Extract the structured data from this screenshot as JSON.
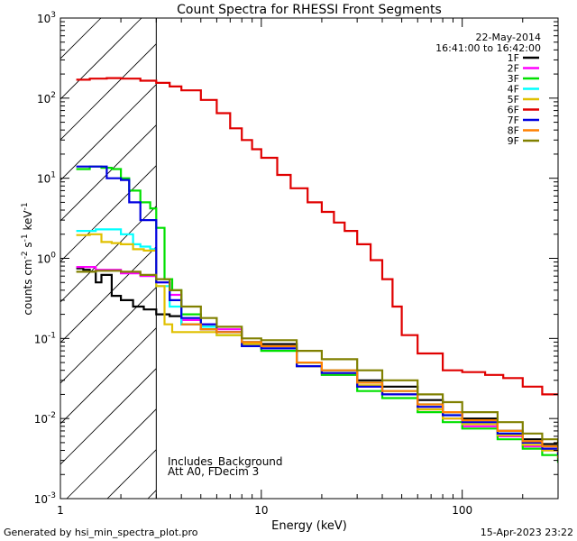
{
  "chart_data": {
    "type": "line",
    "title": "Count Spectra for RHESSI Front Segments",
    "xlabel": "Energy (keV)",
    "ylabel": "counts cm-2 s-1 keV-1",
    "xscale": "log",
    "yscale": "log",
    "xlim": [
      1,
      300
    ],
    "ylim": [
      0.001,
      1000
    ],
    "x_ticks": [
      {
        "value": 1,
        "label": "1"
      },
      {
        "value": 10,
        "label": "10"
      },
      {
        "value": 100,
        "label": "100"
      }
    ],
    "y_ticks": [
      {
        "value": 0.001,
        "base": "10",
        "exp": "-3"
      },
      {
        "value": 0.01,
        "base": "10",
        "exp": "-2"
      },
      {
        "value": 0.1,
        "base": "10",
        "exp": "-1"
      },
      {
        "value": 1,
        "base": "10",
        "exp": "0"
      },
      {
        "value": 10,
        "base": "10",
        "exp": "1"
      },
      {
        "value": 100,
        "base": "10",
        "exp": "2"
      },
      {
        "value": 1000,
        "base": "10",
        "exp": "3"
      }
    ],
    "hatched_region": {
      "from": 1,
      "to": 3
    },
    "date": "22-May-2014",
    "time_range": "16:41:00 to 16:42:00",
    "annotations": [
      "Includes_Background",
      "Att A0, FDecim 3"
    ],
    "series": [
      {
        "name": "1F",
        "color": "#000000",
        "points": [
          [
            1.2,
            0.75
          ],
          [
            1.3,
            0.72
          ],
          [
            1.4,
            0.68
          ],
          [
            1.5,
            0.5
          ],
          [
            1.6,
            0.62
          ],
          [
            1.8,
            0.34
          ],
          [
            2.0,
            0.3
          ],
          [
            2.3,
            0.25
          ],
          [
            2.6,
            0.23
          ],
          [
            3.0,
            0.2
          ],
          [
            3.5,
            0.19
          ],
          [
            4,
            0.15
          ],
          [
            5,
            0.13
          ],
          [
            6,
            0.12
          ],
          [
            8,
            0.09
          ],
          [
            10,
            0.085
          ],
          [
            15,
            0.05
          ],
          [
            20,
            0.04
          ],
          [
            30,
            0.03
          ],
          [
            40,
            0.025
          ],
          [
            60,
            0.017
          ],
          [
            80,
            0.012
          ],
          [
            100,
            0.01
          ],
          [
            150,
            0.007
          ],
          [
            200,
            0.0055
          ],
          [
            250,
            0.0048
          ],
          [
            300,
            0.004
          ]
        ]
      },
      {
        "name": "2F",
        "color": "#ff00ff",
        "points": [
          [
            1.2,
            0.78
          ],
          [
            1.5,
            0.72
          ],
          [
            2.0,
            0.65
          ],
          [
            2.5,
            0.6
          ],
          [
            3.0,
            0.5
          ],
          [
            3.5,
            0.35
          ],
          [
            4,
            0.17
          ],
          [
            5,
            0.15
          ],
          [
            6,
            0.13
          ],
          [
            8,
            0.09
          ],
          [
            10,
            0.08
          ],
          [
            15,
            0.045
          ],
          [
            20,
            0.035
          ],
          [
            30,
            0.025
          ],
          [
            40,
            0.02
          ],
          [
            60,
            0.013
          ],
          [
            80,
            0.01
          ],
          [
            100,
            0.008
          ],
          [
            150,
            0.006
          ],
          [
            200,
            0.0045
          ],
          [
            250,
            0.004
          ],
          [
            300,
            0.003
          ]
        ]
      },
      {
        "name": "3F",
        "color": "#00e000",
        "points": [
          [
            1.2,
            13
          ],
          [
            1.4,
            14
          ],
          [
            1.6,
            13.5
          ],
          [
            1.8,
            13
          ],
          [
            2.0,
            10
          ],
          [
            2.2,
            7
          ],
          [
            2.5,
            5
          ],
          [
            2.8,
            4.2
          ],
          [
            3.0,
            2.4
          ],
          [
            3.3,
            0.55
          ],
          [
            3.6,
            0.4
          ],
          [
            4,
            0.2
          ],
          [
            5,
            0.14
          ],
          [
            6,
            0.11
          ],
          [
            8,
            0.08
          ],
          [
            10,
            0.07
          ],
          [
            15,
            0.045
          ],
          [
            20,
            0.035
          ],
          [
            30,
            0.022
          ],
          [
            40,
            0.018
          ],
          [
            60,
            0.012
          ],
          [
            80,
            0.009
          ],
          [
            100,
            0.0075
          ],
          [
            150,
            0.0055
          ],
          [
            200,
            0.0042
          ],
          [
            250,
            0.0035
          ],
          [
            300,
            0.0028
          ]
        ]
      },
      {
        "name": "4F",
        "color": "#00ffff",
        "points": [
          [
            1.2,
            2.2
          ],
          [
            1.5,
            2.3
          ],
          [
            1.8,
            2.3
          ],
          [
            2.0,
            2.0
          ],
          [
            2.3,
            1.5
          ],
          [
            2.5,
            1.4
          ],
          [
            2.8,
            1.3
          ],
          [
            3.0,
            0.45
          ],
          [
            3.5,
            0.25
          ],
          [
            4,
            0.15
          ],
          [
            5,
            0.14
          ],
          [
            6,
            0.12
          ],
          [
            8,
            0.09
          ],
          [
            10,
            0.08
          ],
          [
            15,
            0.05
          ],
          [
            20,
            0.04
          ],
          [
            30,
            0.028
          ],
          [
            40,
            0.022
          ],
          [
            60,
            0.015
          ],
          [
            80,
            0.011
          ],
          [
            100,
            0.009
          ],
          [
            150,
            0.0065
          ],
          [
            200,
            0.005
          ],
          [
            250,
            0.0042
          ],
          [
            300,
            0.0035
          ]
        ]
      },
      {
        "name": "5F",
        "color": "#e0c000",
        "points": [
          [
            1.2,
            1.95
          ],
          [
            1.4,
            2.0
          ],
          [
            1.6,
            1.6
          ],
          [
            1.8,
            1.55
          ],
          [
            2.0,
            1.5
          ],
          [
            2.3,
            1.3
          ],
          [
            2.6,
            1.25
          ],
          [
            3.0,
            0.45
          ],
          [
            3.3,
            0.15
          ],
          [
            3.6,
            0.12
          ],
          [
            4,
            0.12
          ],
          [
            5,
            0.12
          ],
          [
            6,
            0.11
          ],
          [
            8,
            0.085
          ],
          [
            10,
            0.075
          ],
          [
            15,
            0.045
          ],
          [
            20,
            0.037
          ],
          [
            30,
            0.026
          ],
          [
            40,
            0.02
          ],
          [
            60,
            0.013
          ],
          [
            80,
            0.01
          ],
          [
            100,
            0.0085
          ],
          [
            150,
            0.0062
          ],
          [
            200,
            0.0047
          ],
          [
            250,
            0.004
          ],
          [
            300,
            0.0032
          ]
        ]
      },
      {
        "name": "6F",
        "color": "#e00000",
        "points": [
          [
            1.2,
            170
          ],
          [
            1.4,
            175
          ],
          [
            1.7,
            178
          ],
          [
            2.0,
            175
          ],
          [
            2.5,
            165
          ],
          [
            3.0,
            155
          ],
          [
            3.5,
            140
          ],
          [
            4,
            125
          ],
          [
            5,
            95
          ],
          [
            6,
            65
          ],
          [
            7,
            42
          ],
          [
            8,
            30
          ],
          [
            9,
            23
          ],
          [
            10,
            18
          ],
          [
            12,
            11
          ],
          [
            14,
            7.5
          ],
          [
            17,
            5
          ],
          [
            20,
            3.8
          ],
          [
            23,
            2.8
          ],
          [
            26,
            2.2
          ],
          [
            30,
            1.5
          ],
          [
            35,
            0.95
          ],
          [
            40,
            0.55
          ],
          [
            45,
            0.25
          ],
          [
            50,
            0.11
          ],
          [
            60,
            0.065
          ],
          [
            80,
            0.04
          ],
          [
            100,
            0.038
          ],
          [
            130,
            0.035
          ],
          [
            160,
            0.032
          ],
          [
            200,
            0.025
          ],
          [
            250,
            0.02
          ],
          [
            300,
            0.02
          ]
        ]
      },
      {
        "name": "7F",
        "color": "#0000e0",
        "points": [
          [
            1.2,
            14
          ],
          [
            1.5,
            14
          ],
          [
            1.7,
            10
          ],
          [
            2.0,
            9.5
          ],
          [
            2.2,
            5
          ],
          [
            2.5,
            3
          ],
          [
            2.8,
            3
          ],
          [
            3.0,
            0.5
          ],
          [
            3.5,
            0.3
          ],
          [
            4,
            0.18
          ],
          [
            5,
            0.15
          ],
          [
            6,
            0.12
          ],
          [
            8,
            0.08
          ],
          [
            10,
            0.075
          ],
          [
            15,
            0.045
          ],
          [
            20,
            0.037
          ],
          [
            30,
            0.025
          ],
          [
            40,
            0.02
          ],
          [
            60,
            0.014
          ],
          [
            80,
            0.011
          ],
          [
            100,
            0.009
          ],
          [
            150,
            0.0065
          ],
          [
            200,
            0.005
          ],
          [
            250,
            0.0042
          ],
          [
            300,
            0.0035
          ]
        ]
      },
      {
        "name": "8F",
        "color": "#ff8000",
        "points": [
          [
            4,
            0.15
          ],
          [
            5,
            0.13
          ],
          [
            6,
            0.12
          ],
          [
            8,
            0.09
          ],
          [
            10,
            0.08
          ],
          [
            15,
            0.05
          ],
          [
            20,
            0.04
          ],
          [
            30,
            0.028
          ],
          [
            40,
            0.022
          ],
          [
            60,
            0.015
          ],
          [
            80,
            0.012
          ],
          [
            100,
            0.0095
          ],
          [
            150,
            0.007
          ],
          [
            200,
            0.0052
          ],
          [
            250,
            0.0045
          ],
          [
            300,
            0.0038
          ]
        ]
      },
      {
        "name": "9F",
        "color": "#808000",
        "points": [
          [
            1.2,
            0.68
          ],
          [
            1.5,
            0.7
          ],
          [
            2.0,
            0.68
          ],
          [
            2.5,
            0.62
          ],
          [
            3.0,
            0.55
          ],
          [
            3.5,
            0.4
          ],
          [
            4,
            0.25
          ],
          [
            5,
            0.18
          ],
          [
            6,
            0.14
          ],
          [
            8,
            0.1
          ],
          [
            10,
            0.095
          ],
          [
            15,
            0.07
          ],
          [
            20,
            0.055
          ],
          [
            30,
            0.04
          ],
          [
            40,
            0.03
          ],
          [
            60,
            0.02
          ],
          [
            80,
            0.016
          ],
          [
            100,
            0.012
          ],
          [
            150,
            0.009
          ],
          [
            200,
            0.0065
          ],
          [
            250,
            0.0055
          ],
          [
            300,
            0.0045
          ]
        ]
      }
    ]
  },
  "footer": {
    "generated_by": "Generated by hsi_min_spectra_plot.pro",
    "timestamp": "15-Apr-2023 23:22"
  }
}
